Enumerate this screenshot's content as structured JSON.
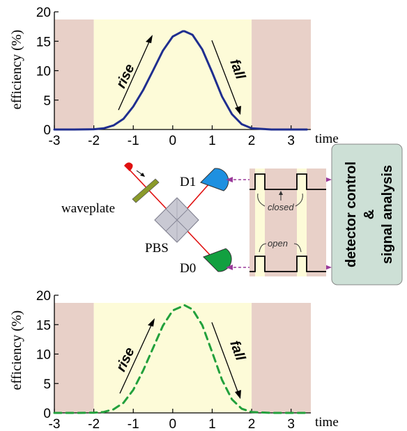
{
  "chart_data": [
    {
      "type": "line",
      "ylabel": "efficiency (%)",
      "xlabel": "time",
      "xlim": [
        -3,
        3.5
      ],
      "ylim": [
        0,
        20
      ],
      "xticks": [
        "-3",
        "-2",
        "-1",
        "0",
        "1",
        "2",
        "3"
      ],
      "yticks": [
        "0",
        "5",
        "10",
        "15",
        "20"
      ],
      "shaded_regions": [
        {
          "from": -3,
          "to": -2,
          "color": "#e8d0c8"
        },
        {
          "from": -2,
          "to": 2,
          "color": "#fdfbd8"
        },
        {
          "from": 2,
          "to": 3.5,
          "color": "#e8d0c8"
        }
      ],
      "annotations": [
        "rise",
        "fall"
      ],
      "series": [
        {
          "style": "solid",
          "color": "#1f2e8f",
          "x": [
            -3,
            -2.5,
            -2,
            -1.75,
            -1.5,
            -1.25,
            -1,
            -0.75,
            -0.5,
            -0.25,
            0,
            0.25,
            0.3,
            0.5,
            0.75,
            1,
            1.25,
            1.5,
            1.75,
            2,
            2.5,
            3.4
          ],
          "y": [
            0,
            0,
            0.05,
            0.2,
            0.7,
            1.8,
            3.9,
            6.7,
            10.0,
            13.4,
            15.8,
            16.7,
            16.7,
            16.1,
            13.6,
            9.7,
            5.6,
            2.6,
            0.9,
            0.2,
            0,
            0
          ]
        }
      ]
    },
    {
      "type": "line",
      "ylabel": "efficiency (%)",
      "xlabel": "time",
      "xlim": [
        -3,
        3.5
      ],
      "ylim": [
        0,
        20
      ],
      "xticks": [
        "-3",
        "-2",
        "-1",
        "0",
        "1",
        "2",
        "3"
      ],
      "yticks": [
        "0",
        "5",
        "10",
        "15",
        "20"
      ],
      "shaded_regions": [
        {
          "from": -3,
          "to": -2,
          "color": "#e8d0c8"
        },
        {
          "from": -2,
          "to": 2,
          "color": "#fdfbd8"
        },
        {
          "from": 2,
          "to": 3.5,
          "color": "#e8d0c8"
        }
      ],
      "annotations": [
        "rise",
        "fall"
      ],
      "series": [
        {
          "style": "dashed",
          "color": "#22a03c",
          "x": [
            -3,
            -2.5,
            -2,
            -1.75,
            -1.5,
            -1.25,
            -1,
            -0.75,
            -0.5,
            -0.25,
            0,
            0.3,
            0.5,
            0.75,
            1,
            1.25,
            1.5,
            1.75,
            2,
            2.5,
            3.4
          ],
          "y": [
            0,
            0,
            0.03,
            0.15,
            0.6,
            1.7,
            3.9,
            7.2,
            11.0,
            14.8,
            17.4,
            18.3,
            17.6,
            14.9,
            10.3,
            5.6,
            2.3,
            0.7,
            0.15,
            0,
            0
          ]
        }
      ]
    }
  ],
  "setup": {
    "waveplate": "waveplate",
    "pbs": "PBS",
    "d1": "D1",
    "d0": "D0",
    "closed": "closed",
    "open": "open",
    "panel_line1": "detector control",
    "panel_line2": "&",
    "panel_line3": "signal analysis"
  }
}
